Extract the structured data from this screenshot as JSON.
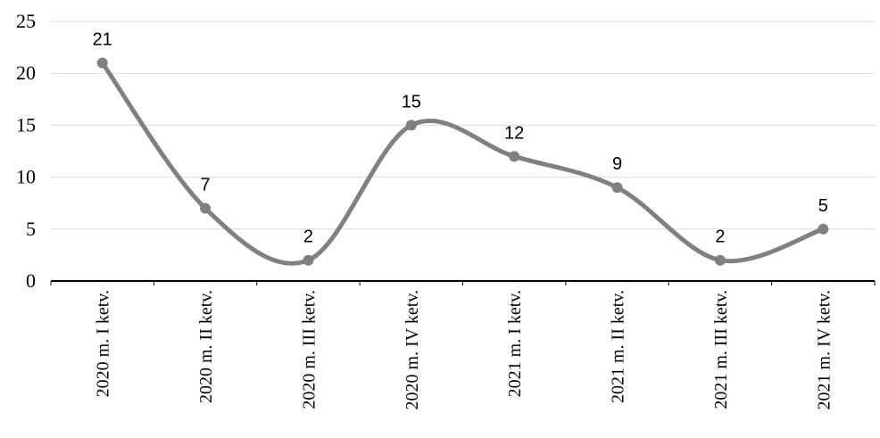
{
  "chart_data": {
    "type": "line",
    "title": "",
    "xlabel": "",
    "ylabel": "",
    "categories": [
      "2020 m. I ketv.",
      "2020 m. II ketv.",
      "2020 m. III ketv.",
      "2020 m. IV ketv.",
      "2021 m. I ketv.",
      "2021 m. II ketv.",
      "2021 m. III ketv.",
      "2021 m. IV ketv."
    ],
    "series": [
      {
        "values": [
          21,
          7,
          2,
          15,
          12,
          9,
          2,
          5
        ],
        "color": "#808080"
      }
    ],
    "ylim": [
      0,
      25
    ],
    "yticks": [
      0,
      5,
      10,
      15,
      20,
      25
    ],
    "grid": true,
    "smooth": true,
    "data_labels": true,
    "legend": "none"
  }
}
